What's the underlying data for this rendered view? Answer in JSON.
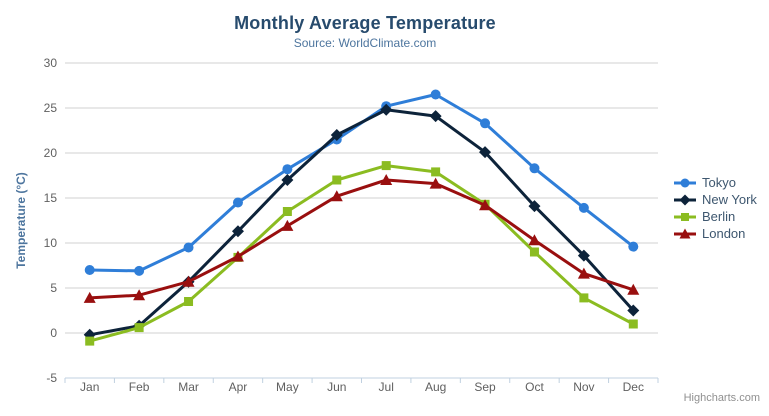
{
  "header": {
    "title": "Monthly Average Temperature",
    "subtitle": "Source: WorldClimate.com"
  },
  "credit": {
    "label": "Highcharts.com"
  },
  "context_menu": {
    "icon": "hamburger-icon"
  },
  "chart_data": {
    "type": "line",
    "title": "Monthly Average Temperature",
    "subtitle": "Source: WorldClimate.com",
    "categories": [
      "Jan",
      "Feb",
      "Mar",
      "Apr",
      "May",
      "Jun",
      "Jul",
      "Aug",
      "Sep",
      "Oct",
      "Nov",
      "Dec"
    ],
    "series": [
      {
        "name": "Tokyo",
        "color": "#2f7ed8",
        "marker": "circle",
        "values": [
          7.0,
          6.9,
          9.5,
          14.5,
          18.2,
          21.5,
          25.2,
          26.5,
          23.3,
          18.3,
          13.9,
          9.6
        ]
      },
      {
        "name": "New York",
        "color": "#0d233a",
        "marker": "diamond",
        "values": [
          -0.2,
          0.8,
          5.7,
          11.3,
          17.0,
          22.0,
          24.8,
          24.1,
          20.1,
          14.1,
          8.6,
          2.5
        ]
      },
      {
        "name": "Berlin",
        "color": "#8bbc21",
        "marker": "square",
        "values": [
          -0.9,
          0.6,
          3.5,
          8.4,
          13.5,
          17.0,
          18.6,
          17.9,
          14.3,
          9.0,
          3.9,
          1.0
        ]
      },
      {
        "name": "London",
        "color": "#990f0f",
        "marker": "triangle",
        "values": [
          3.9,
          4.2,
          5.7,
          8.5,
          11.9,
          15.2,
          17.0,
          16.6,
          14.2,
          10.3,
          6.6,
          4.8
        ]
      }
    ],
    "xlabel": "",
    "ylabel": "Temperature (°C)",
    "ylim": [
      -5,
      30
    ],
    "ytick_step": 5,
    "grid": true,
    "legend_position": "right",
    "colors": {
      "title": "#274b6d",
      "subtitle": "#4d759e",
      "axis_label": "#606060",
      "axis_title": "#4d759e",
      "gridline": "#d0d0d0",
      "axis_line": "#c0d0e0",
      "legend_text": "#3e576f",
      "credit_text": "#909090"
    }
  }
}
